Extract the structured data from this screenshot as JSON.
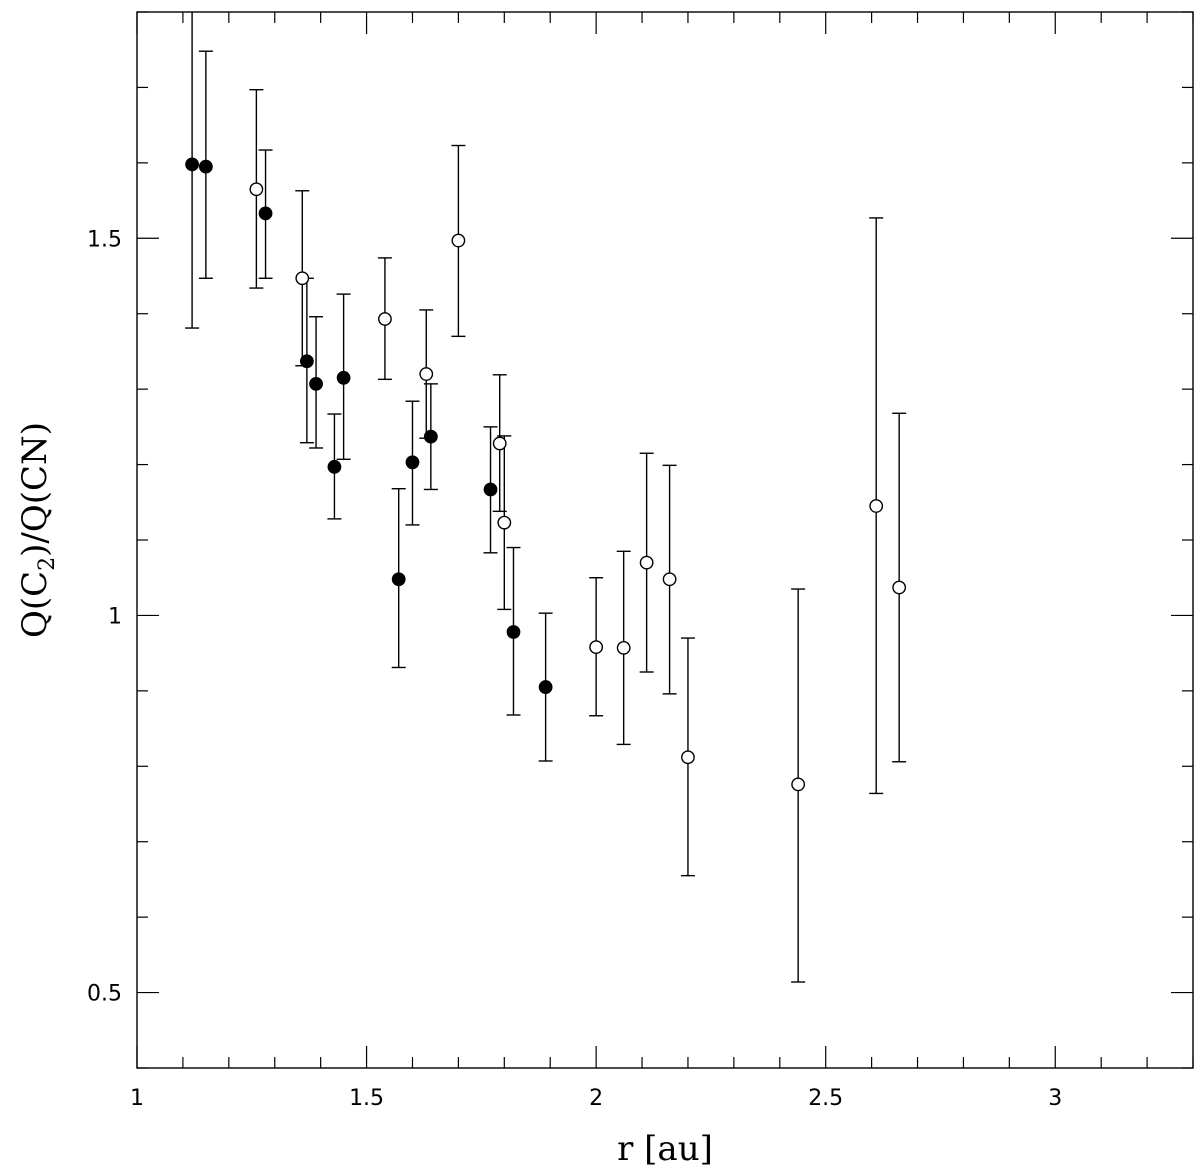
{
  "chart_data": {
    "type": "scatter",
    "xlabel": "r [au]",
    "ylabel_parts": [
      "Q(C",
      "2",
      ")/Q(CN)"
    ],
    "xlim": [
      1.0,
      3.3
    ],
    "ylim": [
      0.4,
      1.8
    ],
    "x_ticks": [
      1,
      1.5,
      2,
      2.5,
      3
    ],
    "x_tick_labels": [
      "1",
      "1.5",
      "2",
      "2.5",
      "3"
    ],
    "y_ticks": [
      0.5,
      1,
      1.5
    ],
    "y_tick_labels": [
      "0.5",
      "1",
      "1.5"
    ],
    "x_minor_step": 0.1,
    "y_minor_step": 0.1,
    "series": [
      {
        "marker": "filled-circle",
        "points": [
          {
            "x": 1.12,
            "y": 1.598,
            "ylo": 1.381,
            "yhi": 1.8
          },
          {
            "x": 1.15,
            "y": 1.595,
            "ylo": 1.447,
            "yhi": 1.748
          },
          {
            "x": 1.28,
            "y": 1.533,
            "ylo": 1.447,
            "yhi": 1.617
          },
          {
            "x": 1.37,
            "y": 1.337,
            "ylo": 1.229,
            "yhi": 1.447
          },
          {
            "x": 1.39,
            "y": 1.307,
            "ylo": 1.222,
            "yhi": 1.396
          },
          {
            "x": 1.45,
            "y": 1.315,
            "ylo": 1.207,
            "yhi": 1.426
          },
          {
            "x": 1.43,
            "y": 1.197,
            "ylo": 1.128,
            "yhi": 1.267
          },
          {
            "x": 1.57,
            "y": 1.048,
            "ylo": 0.931,
            "yhi": 1.168
          },
          {
            "x": 1.6,
            "y": 1.203,
            "ylo": 1.12,
            "yhi": 1.284
          },
          {
            "x": 1.64,
            "y": 1.237,
            "ylo": 1.167,
            "yhi": 1.307
          },
          {
            "x": 1.77,
            "y": 1.167,
            "ylo": 1.083,
            "yhi": 1.25
          },
          {
            "x": 1.82,
            "y": 0.978,
            "ylo": 0.868,
            "yhi": 1.09
          },
          {
            "x": 1.89,
            "y": 0.905,
            "ylo": 0.807,
            "yhi": 1.003
          }
        ]
      },
      {
        "marker": "open-circle",
        "points": [
          {
            "x": 1.26,
            "y": 1.565,
            "ylo": 1.434,
            "yhi": 1.697
          },
          {
            "x": 1.36,
            "y": 1.447,
            "ylo": 1.331,
            "yhi": 1.563
          },
          {
            "x": 1.54,
            "y": 1.393,
            "ylo": 1.313,
            "yhi": 1.474
          },
          {
            "x": 1.63,
            "y": 1.32,
            "ylo": 1.235,
            "yhi": 1.405
          },
          {
            "x": 1.7,
            "y": 1.497,
            "ylo": 1.37,
            "yhi": 1.623
          },
          {
            "x": 1.79,
            "y": 1.228,
            "ylo": 1.138,
            "yhi": 1.319
          },
          {
            "x": 1.8,
            "y": 1.123,
            "ylo": 1.008,
            "yhi": 1.238
          },
          {
            "x": 2.0,
            "y": 0.958,
            "ylo": 0.867,
            "yhi": 1.05
          },
          {
            "x": 2.06,
            "y": 0.957,
            "ylo": 0.829,
            "yhi": 1.085
          },
          {
            "x": 2.11,
            "y": 1.07,
            "ylo": 0.925,
            "yhi": 1.215
          },
          {
            "x": 2.16,
            "y": 1.048,
            "ylo": 0.896,
            "yhi": 1.199
          },
          {
            "x": 2.2,
            "y": 0.812,
            "ylo": 0.655,
            "yhi": 0.97
          },
          {
            "x": 2.44,
            "y": 0.776,
            "ylo": 0.514,
            "yhi": 1.035
          },
          {
            "x": 2.61,
            "y": 1.145,
            "ylo": 0.764,
            "yhi": 1.527
          },
          {
            "x": 2.66,
            "y": 1.037,
            "ylo": 0.806,
            "yhi": 1.268
          }
        ]
      }
    ]
  }
}
